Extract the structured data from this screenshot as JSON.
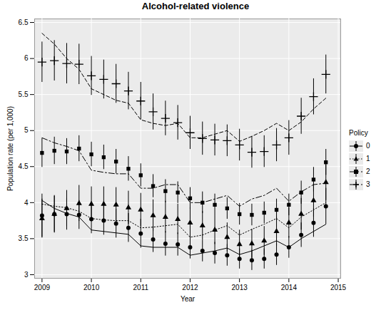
{
  "chart_data": {
    "type": "line",
    "title": "Alcohol-related violence",
    "x_label": "Year",
    "y_label": "Population rate (per 1,000)",
    "legend_title": "Policy",
    "legend": "right",
    "grid": true,
    "xlim": [
      2008.85,
      2015.05
    ],
    "xticks": [
      2009,
      2010,
      2011,
      2012,
      2013,
      2014,
      2015
    ],
    "ylim": [
      2.95,
      6.55
    ],
    "yticks": [
      3,
      3.5,
      4,
      4.5,
      5,
      5.5,
      6,
      6.5
    ],
    "x": [
      2009,
      2009.25,
      2009.5,
      2009.75,
      2010,
      2010.25,
      2010.5,
      2010.75,
      2011,
      2011.25,
      2011.5,
      2011.75,
      2012,
      2012.25,
      2012.5,
      2012.75,
      2013,
      2013.25,
      2013.5,
      2013.75,
      2014,
      2014.25,
      2014.5,
      2014.75
    ],
    "series": [
      {
        "name": "0",
        "color": "#000000",
        "marker": "circle",
        "line_style": "solid",
        "values": [
          3.82,
          3.84,
          3.84,
          3.83,
          3.77,
          3.75,
          3.71,
          3.65,
          3.57,
          3.49,
          3.43,
          3.42,
          3.38,
          3.33,
          3.3,
          3.27,
          3.22,
          3.2,
          3.22,
          3.28,
          3.38,
          3.55,
          3.72,
          3.95
        ],
        "error": [
          0.3,
          0.25,
          0.22,
          0.2,
          0.2,
          0.2,
          0.2,
          0.2,
          0.2,
          0.18,
          0.17,
          0.16,
          0.16,
          0.15,
          0.15,
          0.15,
          0.14,
          0.14,
          0.14,
          0.15,
          0.15,
          0.17,
          0.2,
          0.25
        ],
        "predicted": [
          4.03,
          3.92,
          3.85,
          3.8,
          3.62,
          3.6,
          3.58,
          3.56,
          3.4,
          3.38,
          3.38,
          3.38,
          3.27,
          3.3,
          3.33,
          3.37,
          3.28,
          3.33,
          3.4,
          3.47,
          3.38,
          3.5,
          3.6,
          3.7
        ]
      },
      {
        "name": "1",
        "color": "#000000",
        "marker": "triangle",
        "line_style": "dotted",
        "values": [
          3.78,
          3.84,
          3.92,
          3.99,
          3.98,
          3.98,
          3.97,
          3.93,
          3.9,
          3.82,
          3.8,
          3.77,
          3.72,
          3.68,
          3.62,
          3.52,
          3.42,
          3.43,
          3.47,
          3.6,
          3.72,
          3.84,
          4.03,
          4.28
        ],
        "error": [
          0.27,
          0.26,
          0.25,
          0.25,
          0.24,
          0.24,
          0.24,
          0.23,
          0.23,
          0.22,
          0.22,
          0.21,
          0.21,
          0.2,
          0.2,
          0.2,
          0.2,
          0.2,
          0.2,
          0.2,
          0.21,
          0.22,
          0.23,
          0.25
        ],
        "predicted": [
          3.98,
          3.95,
          3.93,
          3.88,
          3.78,
          3.76,
          3.75,
          3.75,
          3.65,
          3.66,
          3.68,
          3.7,
          3.52,
          3.55,
          3.62,
          3.68,
          3.55,
          3.63,
          3.7,
          3.78,
          3.65,
          3.8,
          3.9,
          4.0
        ]
      },
      {
        "name": "2",
        "color": "#000000",
        "marker": "square",
        "line_style": "longdash",
        "values": [
          4.69,
          4.72,
          4.71,
          4.75,
          4.67,
          4.63,
          4.57,
          4.47,
          4.38,
          4.23,
          4.16,
          4.14,
          4.06,
          4.0,
          3.97,
          3.92,
          3.84,
          3.83,
          3.86,
          3.9,
          3.97,
          4.14,
          4.32,
          4.56
        ],
        "error": [
          0.2,
          0.19,
          0.18,
          0.18,
          0.17,
          0.17,
          0.17,
          0.17,
          0.16,
          0.16,
          0.16,
          0.15,
          0.15,
          0.15,
          0.15,
          0.15,
          0.15,
          0.15,
          0.15,
          0.15,
          0.15,
          0.16,
          0.17,
          0.18
        ],
        "predicted": [
          4.9,
          4.83,
          4.78,
          4.72,
          4.45,
          4.42,
          4.4,
          4.4,
          4.2,
          4.2,
          4.25,
          4.25,
          4.0,
          4.0,
          4.05,
          4.1,
          3.95,
          4.05,
          4.1,
          4.2,
          4.02,
          4.15,
          4.25,
          4.27
        ]
      },
      {
        "name": "3",
        "color": "#000000",
        "marker": "plus",
        "line_style": "dashed",
        "values": [
          5.95,
          5.97,
          5.93,
          5.92,
          5.76,
          5.71,
          5.65,
          5.55,
          5.41,
          5.26,
          5.17,
          5.11,
          4.97,
          4.89,
          4.87,
          4.86,
          4.8,
          4.7,
          4.71,
          4.8,
          4.9,
          5.2,
          5.47,
          5.78
        ],
        "error": [
          0.28,
          0.28,
          0.28,
          0.28,
          0.27,
          0.27,
          0.27,
          0.26,
          0.26,
          0.25,
          0.24,
          0.24,
          0.23,
          0.23,
          0.22,
          0.22,
          0.22,
          0.22,
          0.22,
          0.23,
          0.24,
          0.25,
          0.25,
          0.27
        ],
        "predicted": [
          6.35,
          6.2,
          6.0,
          5.85,
          5.58,
          5.5,
          5.42,
          5.38,
          5.15,
          5.1,
          5.07,
          5.1,
          4.9,
          4.9,
          4.95,
          5.0,
          4.85,
          4.92,
          5.0,
          5.1,
          5.0,
          5.12,
          5.3,
          5.45
        ]
      }
    ]
  }
}
